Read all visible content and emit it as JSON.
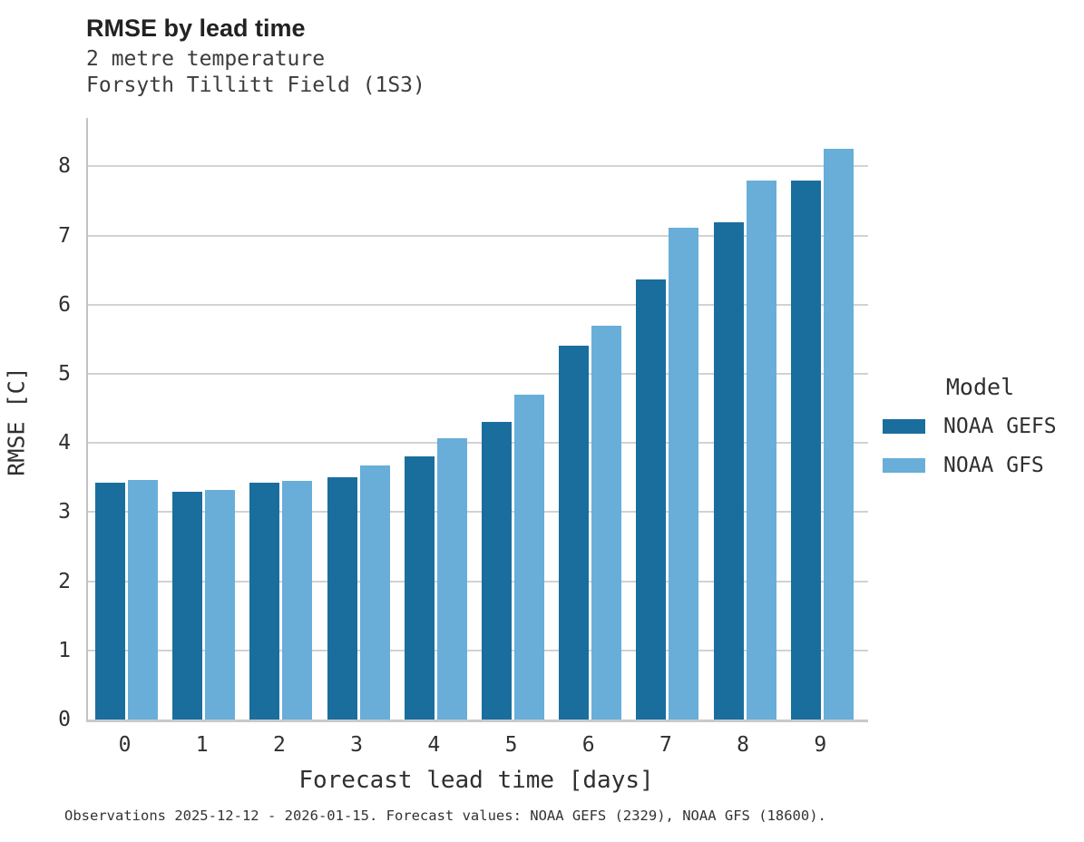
{
  "header": {
    "title": "RMSE by lead time",
    "subtitle_line1": "2 metre temperature",
    "subtitle_line2": "Forsyth Tillitt Field (1S3)"
  },
  "footer": {
    "text": "Observations 2025-12-12 - 2026-01-15. Forecast values: NOAA GEFS (2329), NOAA GFS (18600)."
  },
  "legend": {
    "title": "Model",
    "entries": [
      {
        "label": "NOAA GEFS",
        "color": "#1a6e9d"
      },
      {
        "label": "NOAA GFS",
        "color": "#68aed8"
      }
    ]
  },
  "colors": {
    "series_dark": "#1a6e9d",
    "series_light": "#68aed8",
    "gridline": "#d2d2d2",
    "axis_spine": "#c6c6c6"
  },
  "chart_data": {
    "type": "bar",
    "title": "RMSE by lead time",
    "subtitle": [
      "2 metre temperature",
      "Forsyth Tillitt Field (1S3)"
    ],
    "categories": [
      "0",
      "1",
      "2",
      "3",
      "4",
      "5",
      "6",
      "7",
      "8",
      "9"
    ],
    "series": [
      {
        "name": "NOAA GEFS",
        "color": "#1a6e9d",
        "values": [
          3.42,
          3.29,
          3.43,
          3.51,
          3.8,
          4.3,
          5.4,
          6.36,
          7.19,
          7.8
        ]
      },
      {
        "name": "NOAA GFS",
        "color": "#68aed8",
        "values": [
          3.46,
          3.32,
          3.45,
          3.67,
          4.07,
          4.7,
          5.69,
          7.11,
          7.8,
          8.26
        ]
      }
    ],
    "xlabel": "Forecast lead time [days]",
    "ylabel": "RMSE [C]",
    "ylim": [
      0,
      8.7
    ],
    "yticks": [
      0,
      1,
      2,
      3,
      4,
      5,
      6,
      7,
      8
    ],
    "grid": true,
    "legend_title": "Model",
    "legend_position": "right",
    "annotation": "Observations 2025-12-12 - 2026-01-15. Forecast values: NOAA GEFS (2329), NOAA GFS (18600)."
  }
}
